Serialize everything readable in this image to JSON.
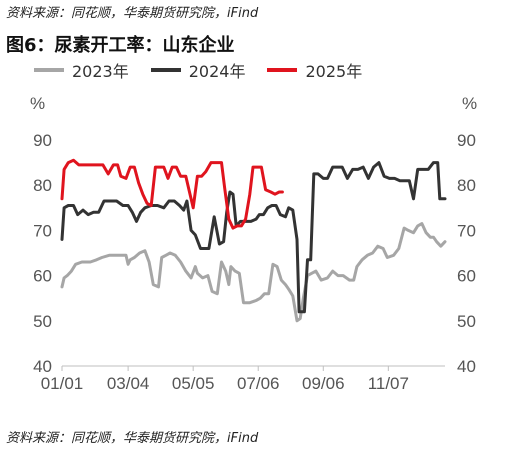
{
  "source_top": "资料来源：同花顺，华泰期货研究院，iFind",
  "source_bottom": "资料来源：同花顺，华泰期货研究院，iFind",
  "chart_data": {
    "type": "line",
    "title": "图6：尿素开工率：山东企业",
    "y_unit_left": "%",
    "y_unit_right": "%",
    "ylim": [
      40,
      90
    ],
    "yticks": [
      40,
      50,
      60,
      70,
      80,
      90
    ],
    "x_ticks": [
      "01/01",
      "03/04",
      "05/05",
      "07/06",
      "09/06",
      "11/07"
    ],
    "x_range": [
      "01-01",
      "12-31"
    ],
    "grid": false,
    "legend_position": "top",
    "series": [
      {
        "name": "2023年",
        "color": "#a6a6a6",
        "points": [
          [
            "01-01",
            57.5
          ],
          [
            "01-03",
            59.5
          ],
          [
            "01-06",
            60
          ],
          [
            "01-10",
            61
          ],
          [
            "01-14",
            62.5
          ],
          [
            "01-20",
            63
          ],
          [
            "01-28",
            63
          ],
          [
            "02-03",
            63.5
          ],
          [
            "02-08",
            64
          ],
          [
            "02-15",
            64.5
          ],
          [
            "02-25",
            64.5
          ],
          [
            "03-02",
            64.5
          ],
          [
            "03-04",
            62.5
          ],
          [
            "03-06",
            63.5
          ],
          [
            "03-10",
            64
          ],
          [
            "03-15",
            65
          ],
          [
            "03-20",
            65.5
          ],
          [
            "03-24",
            63
          ],
          [
            "03-28",
            58
          ],
          [
            "04-02",
            57.5
          ],
          [
            "04-05",
            64
          ],
          [
            "04-09",
            64.5
          ],
          [
            "04-13",
            65
          ],
          [
            "04-18",
            64.5
          ],
          [
            "04-23",
            63
          ],
          [
            "04-28",
            61
          ],
          [
            "05-03",
            59.5
          ],
          [
            "05-07",
            62
          ],
          [
            "05-09",
            60.5
          ],
          [
            "05-14",
            59.5
          ],
          [
            "05-19",
            60
          ],
          [
            "05-23",
            56.5
          ],
          [
            "05-28",
            56
          ],
          [
            "06-01",
            63
          ],
          [
            "06-05",
            61
          ],
          [
            "06-08",
            58
          ],
          [
            "06-10",
            62
          ],
          [
            "06-14",
            61
          ],
          [
            "06-18",
            60.5
          ],
          [
            "06-22",
            54
          ],
          [
            "06-28",
            54
          ],
          [
            "07-04",
            54.5
          ],
          [
            "07-08",
            55
          ],
          [
            "07-12",
            56
          ],
          [
            "07-16",
            56
          ],
          [
            "07-20",
            62.5
          ],
          [
            "07-24",
            62
          ],
          [
            "07-28",
            59
          ],
          [
            "08-01",
            58
          ],
          [
            "08-04",
            57
          ],
          [
            "08-08",
            55.5
          ],
          [
            "08-12",
            50
          ],
          [
            "08-15",
            50.5
          ],
          [
            "08-18",
            55
          ],
          [
            "08-22",
            60
          ],
          [
            "08-26",
            60.5
          ],
          [
            "08-30",
            61
          ],
          [
            "09-04",
            59
          ],
          [
            "09-10",
            59.5
          ],
          [
            "09-15",
            61
          ],
          [
            "09-20",
            60
          ],
          [
            "09-25",
            60
          ],
          [
            "10-01",
            59
          ],
          [
            "10-05",
            59
          ],
          [
            "10-08",
            62
          ],
          [
            "10-13",
            63.5
          ],
          [
            "10-18",
            64.5
          ],
          [
            "10-23",
            65
          ],
          [
            "10-28",
            66.5
          ],
          [
            "11-02",
            66
          ],
          [
            "11-06",
            64
          ],
          [
            "11-12",
            64.5
          ],
          [
            "11-17",
            66
          ],
          [
            "11-22",
            70.5
          ],
          [
            "11-26",
            70
          ],
          [
            "12-01",
            69.5
          ],
          [
            "12-05",
            71
          ],
          [
            "12-09",
            71.5
          ],
          [
            "12-13",
            69.5
          ],
          [
            "12-17",
            68.5
          ],
          [
            "12-20",
            68.5
          ],
          [
            "12-23",
            67.5
          ],
          [
            "12-27",
            66.5
          ],
          [
            "12-31",
            67.5
          ]
        ]
      },
      {
        "name": "2024年",
        "color": "#333333",
        "points": [
          [
            "01-01",
            68
          ],
          [
            "01-03",
            75
          ],
          [
            "01-07",
            75.5
          ],
          [
            "01-12",
            75.5
          ],
          [
            "01-16",
            73.5
          ],
          [
            "01-21",
            74.5
          ],
          [
            "01-26",
            73.5
          ],
          [
            "01-31",
            74
          ],
          [
            "02-05",
            74
          ],
          [
            "02-10",
            76.5
          ],
          [
            "02-16",
            76.5
          ],
          [
            "02-22",
            76.5
          ],
          [
            "02-28",
            75.5
          ],
          [
            "03-04",
            75.5
          ],
          [
            "03-08",
            74
          ],
          [
            "03-12",
            72
          ],
          [
            "03-16",
            74
          ],
          [
            "03-20",
            75
          ],
          [
            "03-26",
            75.5
          ],
          [
            "04-01",
            75.5
          ],
          [
            "04-07",
            75
          ],
          [
            "04-12",
            76.5
          ],
          [
            "04-17",
            76.5
          ],
          [
            "04-22",
            75.5
          ],
          [
            "04-26",
            74.5
          ],
          [
            "04-29",
            76.5
          ],
          [
            "05-03",
            70
          ],
          [
            "05-07",
            69
          ],
          [
            "05-12",
            66
          ],
          [
            "05-16",
            66
          ],
          [
            "05-20",
            66
          ],
          [
            "05-25",
            73
          ],
          [
            "05-30",
            67
          ],
          [
            "06-03",
            67.5
          ],
          [
            "06-06",
            74
          ],
          [
            "06-09",
            78.5
          ],
          [
            "06-12",
            78
          ],
          [
            "06-15",
            71
          ],
          [
            "06-19",
            72
          ],
          [
            "06-24",
            72
          ],
          [
            "06-29",
            72
          ],
          [
            "07-04",
            72.5
          ],
          [
            "07-07",
            73.5
          ],
          [
            "07-11",
            73.5
          ],
          [
            "07-15",
            75
          ],
          [
            "07-19",
            75.5
          ],
          [
            "07-23",
            75.5
          ],
          [
            "07-27",
            73.5
          ],
          [
            "08-01",
            73
          ],
          [
            "08-04",
            75
          ],
          [
            "08-08",
            74.5
          ],
          [
            "08-12",
            68
          ],
          [
            "08-14",
            52
          ],
          [
            "08-19",
            52
          ],
          [
            "08-22",
            63.5
          ],
          [
            "08-25",
            63.5
          ],
          [
            "08-28",
            82.5
          ],
          [
            "09-01",
            82.5
          ],
          [
            "09-06",
            81.5
          ],
          [
            "09-10",
            81.5
          ],
          [
            "09-15",
            84
          ],
          [
            "09-19",
            84
          ],
          [
            "09-24",
            84
          ],
          [
            "09-29",
            81.5
          ],
          [
            "10-04",
            83.5
          ],
          [
            "10-09",
            83.5
          ],
          [
            "10-14",
            84
          ],
          [
            "10-19",
            81.5
          ],
          [
            "10-24",
            84
          ],
          [
            "10-29",
            85
          ],
          [
            "11-03",
            82
          ],
          [
            "11-08",
            81.5
          ],
          [
            "11-13",
            81.5
          ],
          [
            "11-18",
            81
          ],
          [
            "11-23",
            81
          ],
          [
            "11-27",
            81
          ],
          [
            "12-01",
            77
          ],
          [
            "12-05",
            83.5
          ],
          [
            "12-10",
            83.5
          ],
          [
            "12-15",
            83.5
          ],
          [
            "12-20",
            85
          ],
          [
            "12-24",
            85
          ],
          [
            "12-26",
            77
          ],
          [
            "12-31",
            77
          ]
        ]
      },
      {
        "name": "2025年",
        "color": "#e0141e",
        "points": [
          [
            "01-01",
            77
          ],
          [
            "01-03",
            83.5
          ],
          [
            "01-07",
            85
          ],
          [
            "01-12",
            85.5
          ],
          [
            "01-17",
            84.5
          ],
          [
            "01-23",
            84.5
          ],
          [
            "01-29",
            84.5
          ],
          [
            "02-04",
            84.5
          ],
          [
            "02-09",
            84.5
          ],
          [
            "02-14",
            82.5
          ],
          [
            "02-19",
            84.5
          ],
          [
            "02-23",
            84.5
          ],
          [
            "02-26",
            82
          ],
          [
            "03-02",
            81.5
          ],
          [
            "03-06",
            84
          ],
          [
            "03-10",
            84
          ],
          [
            "03-14",
            80.5
          ],
          [
            "03-18",
            78
          ],
          [
            "03-22",
            76
          ],
          [
            "03-26",
            75.5
          ],
          [
            "03-30",
            84
          ],
          [
            "04-03",
            84
          ],
          [
            "04-07",
            84
          ],
          [
            "04-11",
            81.5
          ],
          [
            "04-15",
            84
          ],
          [
            "04-19",
            84
          ],
          [
            "04-23",
            82
          ],
          [
            "04-28",
            82
          ],
          [
            "05-02",
            78
          ],
          [
            "05-05",
            75
          ],
          [
            "05-09",
            82
          ],
          [
            "05-13",
            82
          ],
          [
            "05-17",
            83
          ],
          [
            "05-22",
            85
          ],
          [
            "05-27",
            85
          ],
          [
            "06-01",
            85
          ],
          [
            "06-04",
            79.5
          ],
          [
            "06-08",
            72.5
          ],
          [
            "06-12",
            70.5
          ],
          [
            "06-16",
            71
          ],
          [
            "06-20",
            71
          ],
          [
            "06-24",
            72.5
          ],
          [
            "06-28",
            78
          ],
          [
            "07-01",
            84
          ],
          [
            "07-05",
            84
          ],
          [
            "07-09",
            84
          ],
          [
            "07-13",
            79
          ],
          [
            "07-18",
            78.5
          ],
          [
            "07-22",
            78
          ],
          [
            "07-26",
            78.5
          ],
          [
            "07-29",
            78.5
          ]
        ]
      }
    ]
  }
}
